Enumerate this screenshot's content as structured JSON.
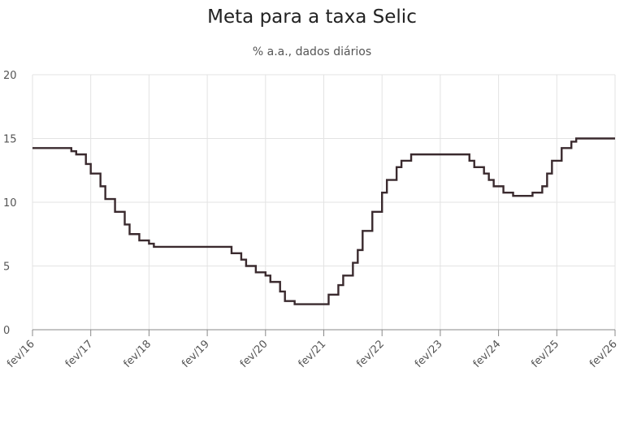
{
  "chart_data": {
    "type": "line",
    "title": "Meta para a taxa Selic",
    "subtitle": "% a.a., dados diários",
    "xlabel": "",
    "ylabel": "",
    "xlim": [
      "2016-02",
      "2026-02"
    ],
    "ylim": [
      0,
      20
    ],
    "y_ticks": [
      0,
      5,
      10,
      15,
      20
    ],
    "x_ticks": [
      "fev/16",
      "fev/17",
      "fev/18",
      "fev/19",
      "fev/20",
      "fev/21",
      "fev/22",
      "fev/23",
      "fev/24",
      "fev/25",
      "fev/26"
    ],
    "grid": true,
    "line_color": "#3a2a2e",
    "series": [
      {
        "points": [
          [
            "2016-02",
            14.25
          ],
          [
            "2016-10",
            14.0
          ],
          [
            "2016-11",
            13.75
          ],
          [
            "2017-01",
            13.0
          ],
          [
            "2017-02",
            12.25
          ],
          [
            "2017-04",
            11.25
          ],
          [
            "2017-05",
            10.25
          ],
          [
            "2017-07",
            9.25
          ],
          [
            "2017-09",
            8.25
          ],
          [
            "2017-10",
            7.5
          ],
          [
            "2017-12",
            7.0
          ],
          [
            "2018-02",
            6.75
          ],
          [
            "2018-03",
            6.5
          ],
          [
            "2019-07",
            6.0
          ],
          [
            "2019-09",
            5.5
          ],
          [
            "2019-10",
            5.0
          ],
          [
            "2019-12",
            4.5
          ],
          [
            "2020-02",
            4.25
          ],
          [
            "2020-03",
            3.75
          ],
          [
            "2020-05",
            3.0
          ],
          [
            "2020-06",
            2.25
          ],
          [
            "2020-08",
            2.0
          ],
          [
            "2021-03",
            2.75
          ],
          [
            "2021-05",
            3.5
          ],
          [
            "2021-06",
            4.25
          ],
          [
            "2021-08",
            5.25
          ],
          [
            "2021-09",
            6.25
          ],
          [
            "2021-10",
            7.75
          ],
          [
            "2021-12",
            9.25
          ],
          [
            "2022-02",
            10.75
          ],
          [
            "2022-03",
            11.75
          ],
          [
            "2022-05",
            12.75
          ],
          [
            "2022-06",
            13.25
          ],
          [
            "2022-08",
            13.75
          ],
          [
            "2023-08",
            13.25
          ],
          [
            "2023-09",
            12.75
          ],
          [
            "2023-11",
            12.25
          ],
          [
            "2023-12",
            11.75
          ],
          [
            "2024-01",
            11.25
          ],
          [
            "2024-03",
            10.75
          ],
          [
            "2024-05",
            10.5
          ],
          [
            "2024-09",
            10.75
          ],
          [
            "2024-11",
            11.25
          ],
          [
            "2024-12",
            12.25
          ],
          [
            "2025-01",
            13.25
          ],
          [
            "2025-03",
            14.25
          ],
          [
            "2025-05",
            14.75
          ],
          [
            "2025-06",
            15.0
          ],
          [
            "2026-02",
            15.0
          ]
        ]
      }
    ]
  }
}
